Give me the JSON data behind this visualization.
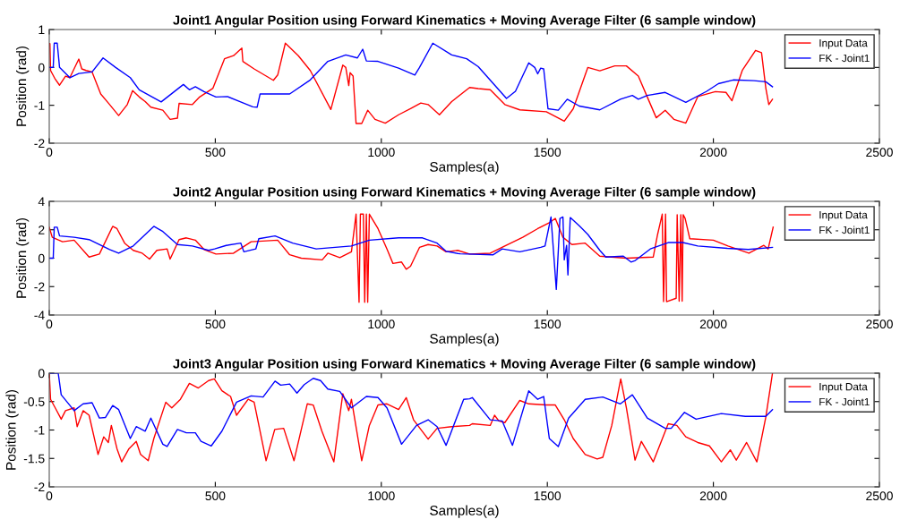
{
  "chart_data": [
    {
      "type": "line",
      "title": "Joint1 Angular Position using Forward Kinematics + Moving Average Filter (6 sample window)",
      "xlabel": "Samples(a)",
      "ylabel": "Position (rad)",
      "xlim": [
        0,
        2500
      ],
      "xticks": [
        0,
        500,
        1000,
        1500,
        2000,
        2500
      ],
      "ylim": [
        -2,
        1
      ],
      "yticks": [
        -2,
        -1,
        0,
        1
      ],
      "legend": "top right",
      "grid": false,
      "series": [
        {
          "name": "Input Data",
          "color": "#ff0000",
          "x": [
            0,
            2,
            4,
            18,
            31,
            49,
            62,
            89,
            98,
            111,
            129,
            155,
            178,
            209,
            235,
            251,
            271,
            289,
            306,
            342,
            364,
            386,
            391,
            431,
            453,
            493,
            528,
            555,
            580,
            583,
            617,
            675,
            688,
            711,
            750,
            786,
            848,
            884,
            893,
            902,
            906,
            915,
            924,
            941,
            959,
            981,
            1012,
            1052,
            1088,
            1119,
            1141,
            1175,
            1212,
            1266,
            1292,
            1328,
            1372,
            1417,
            1497,
            1551,
            1578,
            1622,
            1658,
            1703,
            1738,
            1774,
            1801,
            1828,
            1855,
            1881,
            1917,
            1953,
            2006,
            2038,
            2056,
            2087,
            2127,
            2145,
            2158,
            2167,
            2178
          ],
          "values": [
            0.63,
            0.63,
            -0.08,
            -0.31,
            -0.47,
            -0.23,
            -0.27,
            0.22,
            -0.04,
            -0.08,
            -0.12,
            -0.7,
            -0.94,
            -1.27,
            -0.98,
            -0.61,
            -0.78,
            -0.9,
            -1.05,
            -1.13,
            -1.37,
            -1.34,
            -0.95,
            -0.98,
            -0.78,
            -0.55,
            0.23,
            0.31,
            0.51,
            0.16,
            -0.04,
            -0.34,
            -0.2,
            0.64,
            0.31,
            -0.08,
            -1.11,
            0.06,
            0.0,
            -0.48,
            -0.14,
            -0.23,
            -1.48,
            -1.48,
            -1.13,
            -1.37,
            -1.47,
            -1.25,
            -1.09,
            -0.94,
            -0.98,
            -1.25,
            -0.9,
            -0.53,
            -0.56,
            -0.59,
            -0.98,
            -1.12,
            -1.17,
            -1.42,
            -1.09,
            0,
            -0.09,
            0.04,
            0.04,
            -0.23,
            -0.78,
            -1.33,
            -1.13,
            -1.37,
            -1.47,
            -0.77,
            -0.64,
            -0.66,
            -0.88,
            -0.08,
            0.45,
            0.39,
            -0.55,
            -0.98,
            -0.84
          ]
        },
        {
          "name": "FK - Joint1",
          "color": "#0000ff",
          "x": [
            0,
            12,
            15,
            24,
            31,
            62,
            89,
            129,
            162,
            200,
            244,
            271,
            337,
            404,
            422,
            440,
            466,
            502,
            537,
            573,
            613,
            626,
            635,
            724,
            786,
            839,
            893,
            928,
            944,
            955,
            990,
            1052,
            1101,
            1115,
            1155,
            1212,
            1257,
            1292,
            1377,
            1404,
            1444,
            1462,
            1471,
            1480,
            1489,
            1502,
            1533,
            1560,
            1596,
            1658,
            1720,
            1756,
            1774,
            1801,
            1855,
            1917,
            1980,
            2015,
            2060,
            2122,
            2158,
            2178
          ],
          "values": [
            0,
            0,
            0.64,
            0.64,
            0,
            -0.27,
            -0.16,
            -0.12,
            0.25,
            0,
            -0.27,
            -0.59,
            -0.91,
            -0.45,
            -0.59,
            -0.51,
            -0.64,
            -0.78,
            -0.77,
            -0.9,
            -1.04,
            -1.05,
            -0.7,
            -0.7,
            -0.33,
            0.16,
            0.33,
            0.25,
            0.48,
            0.17,
            0.16,
            -0.02,
            -0.2,
            0,
            0.64,
            0.33,
            0.23,
            0.02,
            -0.82,
            -0.63,
            0.12,
            0,
            -0.17,
            -0.02,
            -0.04,
            -1.09,
            -1.13,
            -0.84,
            -1.02,
            -1.12,
            -0.84,
            -0.74,
            -0.84,
            -0.74,
            -0.66,
            -0.92,
            -0.63,
            -0.43,
            -0.33,
            -0.35,
            -0.38,
            -0.51
          ]
        }
      ]
    },
    {
      "type": "line",
      "title": "Joint2 Angular Position using Forward Kinematics + Moving Average Filter (6 sample window)",
      "xlabel": "Samples(a)",
      "ylabel": "Position (rad)",
      "xlim": [
        0,
        2500
      ],
      "xticks": [
        0,
        500,
        1000,
        1500,
        2000,
        2500
      ],
      "ylim": [
        -4,
        4
      ],
      "yticks": [
        -4,
        -2,
        0,
        2,
        4
      ],
      "legend": "top right",
      "grid": false,
      "series": [
        {
          "name": "Input Data",
          "color": "#ff0000",
          "x": [
            0,
            9,
            40,
            75,
            120,
            151,
            191,
            204,
            227,
            253,
            280,
            302,
            324,
            355,
            364,
            391,
            413,
            440,
            466,
            502,
            555,
            608,
            688,
            724,
            759,
            822,
            839,
            875,
            910,
            924,
            933,
            937,
            946,
            950,
            955,
            959,
            964,
            990,
            1017,
            1035,
            1061,
            1075,
            1088,
            1115,
            1141,
            1168,
            1195,
            1230,
            1266,
            1328,
            1372,
            1426,
            1471,
            1506,
            1524,
            1547,
            1574,
            1614,
            1658,
            1738,
            1819,
            1832,
            1846,
            1850,
            1856,
            1859,
            1888,
            1891,
            1897,
            1902,
            1906,
            1909,
            1915,
            1929,
            2000,
            2044,
            2107,
            2152,
            2165,
            2180
          ],
          "values": [
            2.18,
            1.47,
            1.16,
            1.27,
            0.08,
            0.29,
            2.24,
            2.08,
            1.06,
            0.55,
            0.35,
            -0.06,
            0.55,
            0.65,
            -0.06,
            1.31,
            1.43,
            1.27,
            0.61,
            0.29,
            0.35,
            1.16,
            1.27,
            0.24,
            0,
            -0.12,
            0.35,
            0.04,
            0.45,
            3.1,
            -3.1,
            3.1,
            3.1,
            -3.1,
            3.1,
            -3.1,
            3.1,
            2.08,
            0.65,
            -0.37,
            -0.27,
            -0.78,
            -0.57,
            0.76,
            0.96,
            0.86,
            0.45,
            0.55,
            0.29,
            0.35,
            0.86,
            1.47,
            2.08,
            2.49,
            2.8,
            1.47,
            0.96,
            1.06,
            0.14,
            0,
            0.08,
            1.67,
            3.1,
            -3.06,
            3.1,
            -3.06,
            -2.82,
            3.06,
            -3.02,
            3.06,
            -3.02,
            3.06,
            2.8,
            1.37,
            1.27,
            0.86,
            0.35,
            0.9,
            0.65,
            2.18
          ]
        },
        {
          "name": "FK - Joint1",
          "color": "#0000ff",
          "x": [
            0,
            12,
            15,
            24,
            31,
            75,
            120,
            182,
            209,
            253,
            315,
            342,
            386,
            431,
            480,
            498,
            533,
            577,
            586,
            622,
            631,
            680,
            733,
            804,
            910,
            964,
            1052,
            1124,
            1168,
            1195,
            1230,
            1238,
            1337,
            1364,
            1417,
            1480,
            1493,
            1511,
            1527,
            1538,
            1547,
            1551,
            1558,
            1562,
            1569,
            1596,
            1622,
            1658,
            1676,
            1729,
            1752,
            1765,
            1810,
            1864,
            1908,
            1953,
            2042,
            2105,
            2178
          ],
          "values": [
            0,
            0,
            2.18,
            2.18,
            1.57,
            1.47,
            1.31,
            0.61,
            0.35,
            0.86,
            2.24,
            1.88,
            0.96,
            0.86,
            0.55,
            0.65,
            0.9,
            1.06,
            0.45,
            0.65,
            1.37,
            1.57,
            1.06,
            0.65,
            0.86,
            1.27,
            1.43,
            1.43,
            1.06,
            0.49,
            0.33,
            0.31,
            0.24,
            0.65,
            0.45,
            0.76,
            0.86,
            2.9,
            -2.2,
            2.8,
            2.9,
            -0.12,
            0.9,
            -1.18,
            2.86,
            2.29,
            1.67,
            0.55,
            0.08,
            0.14,
            -0.27,
            -0.16,
            0.65,
            1.1,
            1.1,
            0.86,
            0.69,
            0.61,
            0.76
          ]
        }
      ]
    },
    {
      "type": "line",
      "title": "Joint3 Angular Position using Forward Kinematics + Moving Average Filter (6 sample window)",
      "xlabel": "Samples(a)",
      "ylabel": "Position (rad)",
      "xlim": [
        0,
        2500
      ],
      "xticks": [
        0,
        500,
        1000,
        1500,
        2000,
        2500
      ],
      "ylim": [
        -2,
        0
      ],
      "yticks": [
        -2,
        -1.5,
        -1,
        -0.5,
        0
      ],
      "legend": "top right",
      "grid": false,
      "series": [
        {
          "name": "Input Data",
          "color": "#ff0000",
          "x": [
            0,
            4,
            18,
            36,
            49,
            75,
            84,
            102,
            120,
            147,
            164,
            178,
            187,
            204,
            218,
            240,
            262,
            275,
            298,
            315,
            351,
            369,
            395,
            422,
            449,
            480,
            497,
            520,
            546,
            564,
            599,
            617,
            653,
            679,
            706,
            737,
            777,
            795,
            821,
            857,
            884,
            902,
            910,
            941,
            964,
            990,
            1017,
            1052,
            1075,
            1097,
            1141,
            1168,
            1212,
            1266,
            1274,
            1328,
            1341,
            1354,
            1372,
            1417,
            1444,
            1497,
            1524,
            1551,
            1578,
            1614,
            1650,
            1667,
            1694,
            1721,
            1738,
            1764,
            1783,
            1819,
            1864,
            1890,
            1917,
            1953,
            1988,
            2024,
            2051,
            2069,
            2100,
            2131,
            2158,
            2178
          ],
          "values": [
            0,
            -0.46,
            -0.61,
            -0.81,
            -0.66,
            -0.61,
            -0.94,
            -0.66,
            -0.74,
            -1.43,
            -1.12,
            -1.22,
            -0.92,
            -1.33,
            -1.56,
            -1.33,
            -1.2,
            -1.43,
            -1.54,
            -1.15,
            -0.51,
            -0.61,
            -0.46,
            -0.18,
            -0.26,
            -0.13,
            -0.1,
            -0.31,
            -0.41,
            -0.74,
            -0.46,
            -0.51,
            -1.54,
            -0.99,
            -0.97,
            -1.54,
            -0.54,
            -0.56,
            -1.02,
            -1.56,
            -0.36,
            -0.66,
            -0.46,
            -1.54,
            -0.92,
            -0.56,
            -0.54,
            -0.64,
            -0.43,
            -0.82,
            -1.16,
            -0.97,
            -0.94,
            -0.92,
            -0.89,
            -0.92,
            -0.74,
            -0.84,
            -0.87,
            -0.48,
            -0.54,
            -0.56,
            -0.56,
            -0.82,
            -1.15,
            -1.43,
            -1.51,
            -1.48,
            -0.92,
            -0.1,
            -0.61,
            -1.53,
            -1.2,
            -1.56,
            -0.89,
            -0.92,
            -1.12,
            -1.22,
            -1.28,
            -1.56,
            -1.35,
            -1.53,
            -1.22,
            -1.56,
            -0.77,
            0
          ]
        },
        {
          "name": "FK - Joint1",
          "color": "#0000ff",
          "x": [
            0,
            27,
            36,
            75,
            102,
            129,
            151,
            169,
            191,
            209,
            244,
            262,
            289,
            306,
            342,
            355,
            386,
            413,
            440,
            457,
            488,
            520,
            564,
            608,
            644,
            680,
            697,
            724,
            746,
            768,
            795,
            817,
            839,
            875,
            910,
            955,
            990,
            1017,
            1061,
            1106,
            1141,
            1168,
            1195,
            1248,
            1266,
            1274,
            1328,
            1364,
            1395,
            1444,
            1471,
            1489,
            1506,
            1533,
            1564,
            1614,
            1667,
            1720,
            1756,
            1801,
            1855,
            1873,
            1913,
            1948,
            2024,
            2096,
            2158,
            2178
          ],
          "values": [
            0,
            0,
            -0.38,
            -0.66,
            -0.54,
            -0.52,
            -0.79,
            -0.78,
            -0.57,
            -0.64,
            -1.15,
            -0.94,
            -1.02,
            -0.79,
            -1.25,
            -1.29,
            -0.99,
            -1.05,
            -1.05,
            -1.2,
            -1.28,
            -1.02,
            -0.51,
            -0.4,
            -0.42,
            -0.14,
            -0.21,
            -0.19,
            -0.35,
            -0.2,
            -0.09,
            -0.13,
            -0.28,
            -0.32,
            -0.61,
            -0.41,
            -0.43,
            -0.61,
            -1.25,
            -0.92,
            -0.82,
            -0.94,
            -1.27,
            -0.46,
            -0.45,
            -0.43,
            -0.82,
            -0.84,
            -1.27,
            -0.31,
            -0.46,
            -0.41,
            -1.15,
            -1.29,
            -0.79,
            -0.46,
            -0.42,
            -0.54,
            -0.38,
            -0.79,
            -0.97,
            -0.97,
            -0.69,
            -0.81,
            -0.71,
            -0.76,
            -0.76,
            -0.64
          ]
        }
      ]
    }
  ]
}
